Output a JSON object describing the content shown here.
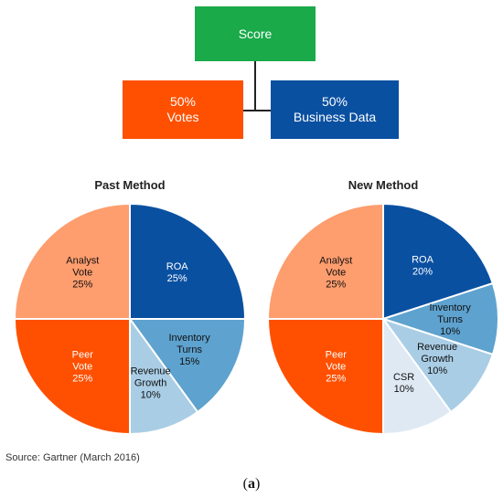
{
  "tree": {
    "score": {
      "label": "Score",
      "color": "#1aaa4a"
    },
    "votes": {
      "pct": "50%",
      "label": "Votes",
      "color": "#fe5000"
    },
    "business": {
      "pct": "50%",
      "label": "Business Data",
      "color": "#0a50a1"
    }
  },
  "chart_data": [
    {
      "type": "pie",
      "title": "Past Method",
      "slices": [
        {
          "name": "ROA",
          "lines": [
            "ROA",
            "25%"
          ],
          "value": 25,
          "color": "#0a50a1",
          "text_color": "#ffffff"
        },
        {
          "name": "Inventory Turns",
          "lines": [
            "Inventory",
            "Turns",
            "15%"
          ],
          "value": 15,
          "color": "#5ea2cf",
          "text_color": "#111111"
        },
        {
          "name": "Revenue Growth",
          "lines": [
            "Revenue",
            "Growth",
            "10%"
          ],
          "value": 10,
          "color": "#a9cde5",
          "text_color": "#111111"
        },
        {
          "name": "Peer Vote",
          "lines": [
            "Peer",
            "Vote",
            "25%"
          ],
          "value": 25,
          "color": "#fe5000",
          "text_color": "#ffffff"
        },
        {
          "name": "Analyst Vote",
          "lines": [
            "Analyst",
            "Vote",
            "25%"
          ],
          "value": 25,
          "color": "#fe9d6e",
          "text_color": "#111111"
        }
      ]
    },
    {
      "type": "pie",
      "title": "New Method",
      "slices": [
        {
          "name": "ROA",
          "lines": [
            "ROA",
            "20%"
          ],
          "value": 20,
          "color": "#0a50a1",
          "text_color": "#ffffff"
        },
        {
          "name": "Inventory Turns",
          "lines": [
            "Inventory",
            "Turns",
            "10%"
          ],
          "value": 10,
          "color": "#5ea2cf",
          "text_color": "#111111"
        },
        {
          "name": "Revenue Growth",
          "lines": [
            "Revenue",
            "Growth",
            "10%"
          ],
          "value": 10,
          "color": "#a9cde5",
          "text_color": "#111111"
        },
        {
          "name": "CSR",
          "lines": [
            "CSR",
            "10%"
          ],
          "value": 10,
          "color": "#dfe9f4",
          "text_color": "#111111"
        },
        {
          "name": "Peer Vote",
          "lines": [
            "Peer",
            "Vote",
            "25%"
          ],
          "value": 25,
          "color": "#fe5000",
          "text_color": "#ffffff"
        },
        {
          "name": "Analyst Vote",
          "lines": [
            "Analyst",
            "Vote",
            "25%"
          ],
          "value": 25,
          "color": "#fe9d6e",
          "text_color": "#111111"
        }
      ]
    }
  ],
  "source": "Source: Gartner (March 2016)",
  "caption": {
    "open": "(",
    "letter": "a",
    "close": ")"
  }
}
